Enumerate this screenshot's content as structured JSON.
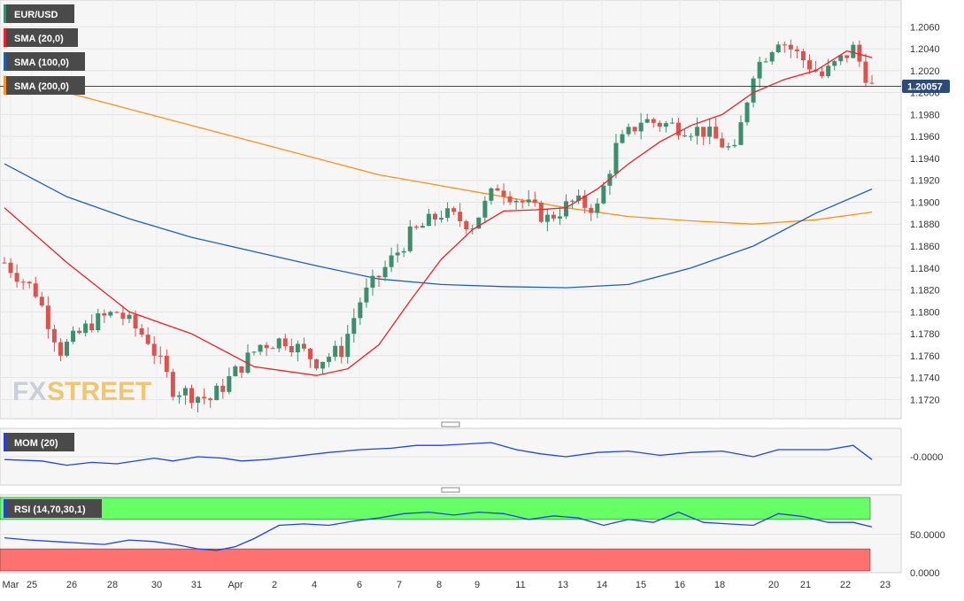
{
  "watermark": {
    "part1": "FX",
    "part2": "STREET"
  },
  "colors": {
    "bull": "#3c8f6d",
    "bear": "#d9534f",
    "sma20": "#e8232a",
    "sma100": "#1f5fb5",
    "sma200": "#f7931e",
    "mom": "#2244dd",
    "rsi": "#2244dd",
    "rsi_over": "#66ff66",
    "rsi_under": "#ff7070",
    "price_box": "#2c4a7c"
  },
  "legend": {
    "symbol": "EUR/USD",
    "sma20": "SMA (20,0)",
    "sma100": "SMA (100,0)",
    "sma200": "SMA (200,0)"
  },
  "indicators": {
    "mom_label": "MOM (20)",
    "mom_tick": "-0.0000",
    "rsi_label": "RSI (14,70,30,1)",
    "rsi_ticks": [
      "50.0000",
      "0.0000"
    ]
  },
  "current_price": {
    "label": "1.20057",
    "value": 1.20057
  },
  "chart_data": {
    "type": "candlestick",
    "title": "EUR/USD",
    "ylim": [
      1.1705,
      1.2078
    ],
    "y_ticks": [
      "1.2060",
      "1.2040",
      "1.2020",
      "1.2000",
      "1.1980",
      "1.1960",
      "1.1940",
      "1.1920",
      "1.1900",
      "1.1880",
      "1.1860",
      "1.1840",
      "1.1820",
      "1.1800",
      "1.1780",
      "1.1760",
      "1.1740",
      "1.1720"
    ],
    "x_ticks": [
      "Mar",
      "25",
      "26",
      "28",
      "30",
      "31",
      "Apr",
      "2",
      "4",
      "6",
      "7",
      "8",
      "9",
      "11",
      "13",
      "14",
      "15",
      "16",
      "18",
      "20",
      "21",
      "22",
      "23"
    ],
    "timeframe": "1H",
    "candle_count": 140,
    "price_path": [
      [
        0,
        1.1845
      ],
      [
        5,
        1.1818
      ],
      [
        9,
        1.1765
      ],
      [
        14,
        1.179
      ],
      [
        18,
        1.18
      ],
      [
        23,
        1.1775
      ],
      [
        27,
        1.173
      ],
      [
        33,
        1.172
      ],
      [
        37,
        1.1745
      ],
      [
        41,
        1.177
      ],
      [
        45,
        1.1775
      ],
      [
        50,
        1.1755
      ],
      [
        54,
        1.1765
      ],
      [
        57,
        1.181
      ],
      [
        61,
        1.184
      ],
      [
        65,
        1.187
      ],
      [
        70,
        1.189
      ],
      [
        75,
        1.188
      ],
      [
        79,
        1.1915
      ],
      [
        83,
        1.19
      ],
      [
        87,
        1.1885
      ],
      [
        91,
        1.19
      ],
      [
        95,
        1.1895
      ],
      [
        98,
        1.195
      ],
      [
        102,
        1.1975
      ],
      [
        107,
        1.197
      ],
      [
        112,
        1.1965
      ],
      [
        117,
        1.1945
      ],
      [
        120,
        1.202
      ],
      [
        124,
        1.205
      ],
      [
        127,
        1.2035
      ],
      [
        131,
        1.2015
      ],
      [
        136,
        1.204
      ],
      [
        139,
        1.2005
      ]
    ],
    "series": [
      {
        "name": "SMA (20,0)",
        "x": [
          0,
          10,
          20,
          30,
          40,
          50,
          55,
          60,
          65,
          70,
          75,
          80,
          85,
          90,
          95,
          100,
          105,
          110,
          115,
          120,
          125,
          130,
          135,
          139
        ],
        "values": [
          1.1895,
          1.1845,
          1.18,
          1.178,
          1.175,
          1.1742,
          1.1748,
          1.177,
          1.181,
          1.1848,
          1.1875,
          1.1892,
          1.1893,
          1.1895,
          1.1912,
          1.1935,
          1.1955,
          1.197,
          1.198,
          1.2,
          1.2012,
          1.202,
          1.2038,
          1.2032
        ]
      },
      {
        "name": "SMA (100,0)",
        "x": [
          0,
          10,
          20,
          30,
          40,
          50,
          60,
          70,
          80,
          90,
          100,
          110,
          120,
          130,
          139
        ],
        "values": [
          1.1935,
          1.1905,
          1.1885,
          1.1868,
          1.1855,
          1.1842,
          1.183,
          1.1825,
          1.1823,
          1.1822,
          1.1825,
          1.184,
          1.186,
          1.189,
          1.1912
        ]
      },
      {
        "name": "SMA (200,0)",
        "x": [
          0,
          10,
          20,
          30,
          40,
          50,
          60,
          70,
          80,
          90,
          100,
          110,
          120,
          130,
          139
        ],
        "values": [
          1.2015,
          1.2,
          1.1985,
          1.197,
          1.1955,
          1.194,
          1.1925,
          1.1915,
          1.1905,
          1.1895,
          1.1887,
          1.1883,
          1.188,
          1.1884,
          1.1891
        ]
      },
      {
        "name": "MOM (20)",
        "x": [
          0,
          6,
          10,
          14,
          18,
          24,
          27,
          31,
          35,
          38,
          42,
          48,
          52,
          57,
          62,
          66,
          70,
          74,
          78,
          82,
          86,
          90,
          95,
          100,
          105,
          110,
          115,
          120,
          124,
          128,
          132,
          136,
          139
        ],
        "values": [
          -0.2,
          -0.3,
          -0.6,
          -0.4,
          -0.5,
          -0.1,
          -0.3,
          0.0,
          -0.1,
          -0.3,
          -0.2,
          0.1,
          0.3,
          0.5,
          0.6,
          0.8,
          0.8,
          0.9,
          1.0,
          0.5,
          0.2,
          0.0,
          0.3,
          0.4,
          0.1,
          0.3,
          0.4,
          0.0,
          0.5,
          0.5,
          0.5,
          0.8,
          -0.2
        ]
      },
      {
        "name": "RSI (14,70,30,1)",
        "x": [
          0,
          4,
          8,
          12,
          16,
          20,
          24,
          28,
          31,
          34,
          37,
          40,
          44,
          48,
          52,
          56,
          60,
          64,
          68,
          72,
          76,
          80,
          84,
          88,
          92,
          96,
          100,
          104,
          108,
          112,
          116,
          120,
          124,
          128,
          132,
          136,
          139
        ],
        "values": [
          45,
          42,
          40,
          38,
          36,
          42,
          40,
          35,
          30,
          28,
          33,
          44,
          62,
          64,
          62,
          68,
          72,
          78,
          80,
          76,
          80,
          78,
          70,
          75,
          72,
          62,
          70,
          66,
          80,
          66,
          64,
          62,
          78,
          74,
          66,
          66,
          60
        ]
      }
    ],
    "rsi_levels": {
      "overbought": 70,
      "oversold": 30
    },
    "grid": true,
    "legend_position": "top-left"
  }
}
